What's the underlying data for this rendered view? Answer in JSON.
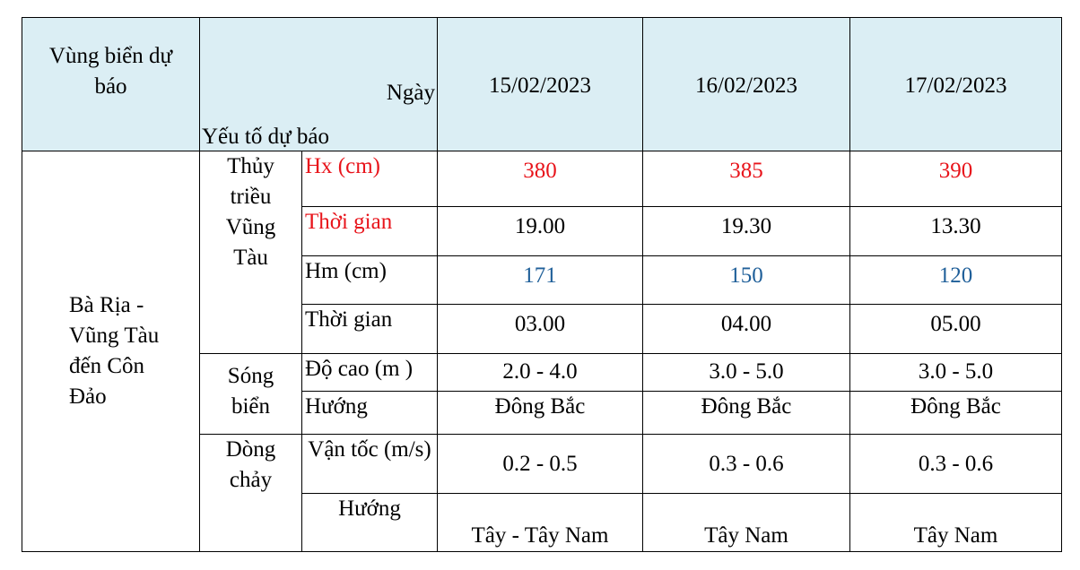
{
  "header": {
    "region_label": "Vùng biển dự báo",
    "day_label": "Ngày",
    "factor_label": "Yếu tố dự báo",
    "dates": [
      "15/02/2023",
      "16/02/2023",
      "17/02/2023"
    ]
  },
  "region": "Bà Rịa - Vũng Tàu đến Côn Đảo",
  "groups": [
    {
      "name": "Thủy triều Vũng Tàu",
      "rows": [
        {
          "label": "Hx (cm)",
          "values": [
            "380",
            "385",
            "390"
          ]
        },
        {
          "label": "Thời gian",
          "values": [
            "19.00",
            "19.30",
            "13.30"
          ]
        },
        {
          "label": "Hm (cm)",
          "values": [
            "171",
            "150",
            "120"
          ]
        },
        {
          "label": "Thời gian",
          "values": [
            "03.00",
            "04.00",
            "05.00"
          ]
        }
      ]
    },
    {
      "name": "Sóng biển",
      "rows": [
        {
          "label": "Độ cao (m )",
          "values": [
            "2.0 - 4.0",
            "3.0 - 5.0",
            "3.0 - 5.0"
          ]
        },
        {
          "label": "Hướng",
          "values": [
            "Đông Bắc",
            "Đông Bắc",
            "Đông Bắc"
          ]
        }
      ]
    },
    {
      "name": "Dòng chảy",
      "rows": [
        {
          "label": "Vận tốc (m/s)",
          "values": [
            "0.2 - 0.5",
            "0.3 - 0.6",
            "0.3 - 0.6"
          ]
        },
        {
          "label": "Hướng",
          "values": [
            "Tây - Tây Nam",
            "Tây Nam",
            "Tây Nam"
          ]
        }
      ]
    }
  ]
}
